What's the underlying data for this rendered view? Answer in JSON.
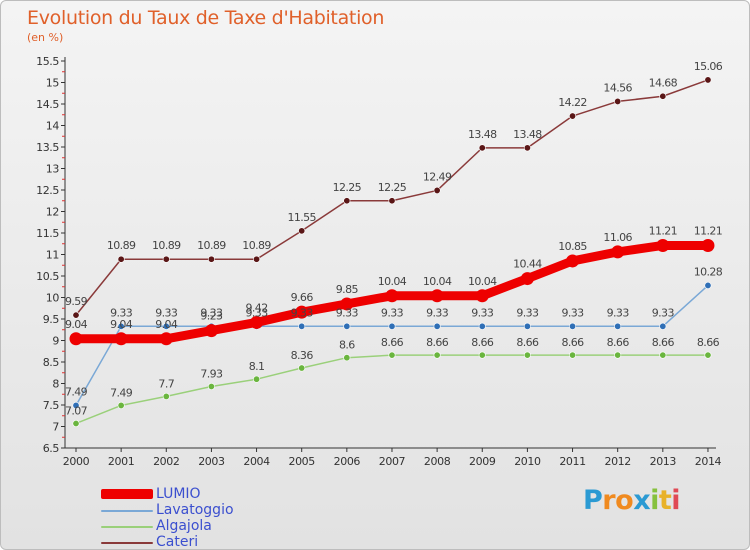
{
  "title": "Evolution du Taux de Taxe d'Habitation",
  "unit_label": "(en %)",
  "logo": {
    "text": "Proxiti",
    "colors": [
      "#2b9ad3",
      "#f08a1f",
      "#f08a1f",
      "#2b9ad3",
      "#86c13d",
      "#e8b22a",
      "#e04a55"
    ]
  },
  "chart_data": {
    "type": "line",
    "x": [
      "2000",
      "2001",
      "2002",
      "2003",
      "2004",
      "2005",
      "2006",
      "2007",
      "2008",
      "2009",
      "2010",
      "2011",
      "2012",
      "2013",
      "2014"
    ],
    "y_ticks": [
      "6.5",
      "7",
      "7.5",
      "8",
      "8.5",
      "9",
      "9.5",
      "10",
      "10.5",
      "11",
      "11.5",
      "12",
      "12.5",
      "13",
      "13.5",
      "14",
      "14.5",
      "15",
      "15.5"
    ],
    "ylim": [
      6.5,
      15.5
    ],
    "grid": false,
    "legend_position": "bottom-left",
    "series": [
      {
        "name": "LUMIO",
        "color": "#ee0000",
        "point_color": "#ee0000",
        "width": "thick",
        "values": [
          9.04,
          9.04,
          9.04,
          9.23,
          9.42,
          9.66,
          9.85,
          10.04,
          10.04,
          10.04,
          10.44,
          10.85,
          11.06,
          11.21,
          11.21
        ],
        "labels": [
          "9.04",
          "9.04",
          "9.04",
          "9.23",
          "9.42",
          "9.66",
          "9.85",
          "10.04",
          "10.04",
          "10.04",
          "10.44",
          "10.85",
          "11.06",
          "11.21",
          "11.21"
        ]
      },
      {
        "name": "Lavatoggio",
        "color": "#7aa8d6",
        "point_color": "#2f6fb6",
        "width": "thin",
        "values": [
          7.49,
          9.33,
          9.33,
          9.33,
          9.33,
          9.33,
          9.33,
          9.33,
          9.33,
          9.33,
          9.33,
          9.33,
          9.33,
          9.33,
          10.28
        ],
        "labels": [
          "7.49",
          "9.33",
          "9.33",
          "9.33",
          "9.33",
          "9.33",
          "9.33",
          "9.33",
          "9.33",
          "9.33",
          "9.33",
          "9.33",
          "9.33",
          "9.33",
          "10.28"
        ]
      },
      {
        "name": "Algajola",
        "color": "#9ad07a",
        "point_color": "#6ab53e",
        "width": "thin",
        "values": [
          7.07,
          7.49,
          7.7,
          7.93,
          8.1,
          8.36,
          8.6,
          8.66,
          8.66,
          8.66,
          8.66,
          8.66,
          8.66,
          8.66,
          8.66
        ],
        "labels": [
          "7.07",
          "7.49",
          "7.7",
          "7.93",
          "8.1",
          "8.36",
          "8.6",
          "8.66",
          "8.66",
          "8.66",
          "8.66",
          "8.66",
          "8.66",
          "8.66",
          "8.66"
        ]
      },
      {
        "name": "Cateri",
        "color": "#8a3a3a",
        "point_color": "#5a1616",
        "width": "thin",
        "values": [
          9.59,
          10.89,
          10.89,
          10.89,
          10.89,
          11.55,
          12.25,
          12.25,
          12.49,
          13.48,
          13.48,
          14.22,
          14.56,
          14.68,
          15.06
        ],
        "labels": [
          "9.59",
          "10.89",
          "10.89",
          "10.89",
          "10.89",
          "11.55",
          "12.25",
          "12.25",
          "12.49",
          "13.48",
          "13.48",
          "14.22",
          "14.56",
          "14.68",
          "15.06"
        ]
      }
    ]
  }
}
